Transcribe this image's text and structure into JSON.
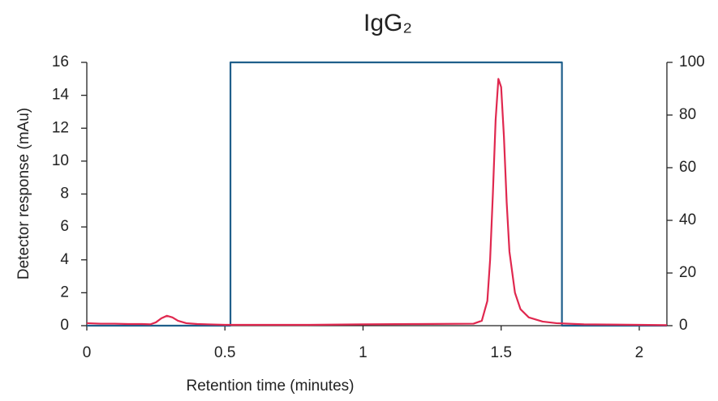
{
  "chart_data": {
    "type": "line",
    "title": "IgG₂",
    "x_label": "Retention time (minutes)",
    "y_label": "Detector response (mAu)",
    "xlim": [
      0,
      2.1
    ],
    "xticks": [
      0,
      0.5,
      1,
      1.5,
      2
    ],
    "ylim": [
      0,
      16
    ],
    "yticks": [
      0,
      2,
      4,
      6,
      8,
      10,
      12,
      14,
      16
    ],
    "y2lim": [
      0,
      100
    ],
    "y2ticks": [
      0,
      20,
      40,
      60,
      80,
      100
    ],
    "series": [
      {
        "color": "#e0284f",
        "x": [
          0,
          0.05,
          0.1,
          0.15,
          0.2,
          0.23,
          0.25,
          0.27,
          0.29,
          0.31,
          0.33,
          0.36,
          0.4,
          0.5,
          0.8,
          1.0,
          1.2,
          1.4,
          1.43,
          1.45,
          1.46,
          1.47,
          1.48,
          1.49,
          1.5,
          1.51,
          1.52,
          1.53,
          1.55,
          1.57,
          1.6,
          1.65,
          1.7,
          1.8,
          2.0,
          2.1
        ],
        "values": [
          0.15,
          0.12,
          0.12,
          0.1,
          0.1,
          0.08,
          0.2,
          0.45,
          0.6,
          0.5,
          0.3,
          0.15,
          0.1,
          0.05,
          0.05,
          0.08,
          0.1,
          0.12,
          0.3,
          1.5,
          4,
          8,
          12.5,
          15,
          14.5,
          11.5,
          7.5,
          4.5,
          2,
          1,
          0.5,
          0.25,
          0.15,
          0.08,
          0.05,
          0.03
        ]
      },
      {
        "color": "#1f5f8b",
        "axis": "y2",
        "x": [
          0,
          0.52,
          0.52,
          1.72,
          1.72,
          2.1
        ],
        "values": [
          0,
          0,
          100,
          100,
          0,
          0
        ]
      }
    ]
  }
}
